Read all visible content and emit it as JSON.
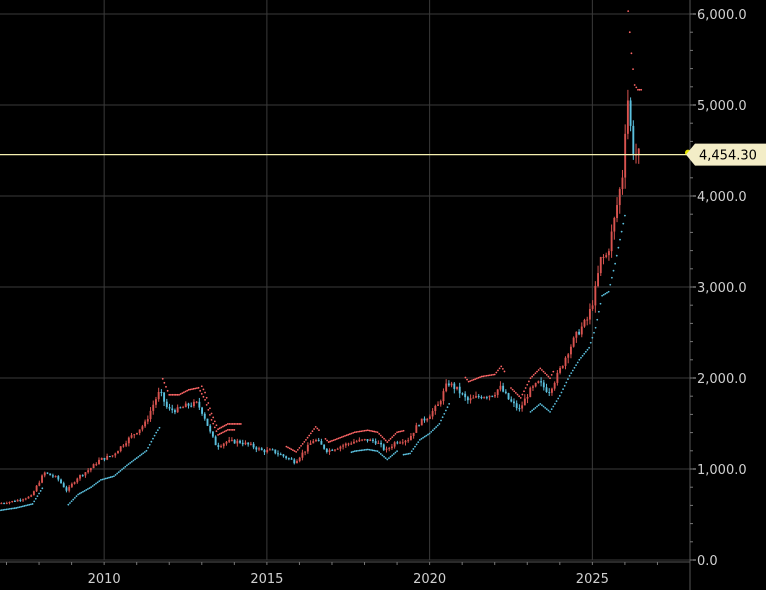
{
  "chart_data": {
    "type": "candlestick",
    "title": "",
    "xlabel": "",
    "ylabel": "",
    "xlim": [
      2006.8,
      2028.0
    ],
    "ylim": [
      0,
      6000
    ],
    "grid": true,
    "x_ticks": [
      {
        "value": 2010,
        "label": "2010"
      },
      {
        "value": 2015,
        "label": "2015"
      },
      {
        "value": 2020,
        "label": "2020"
      },
      {
        "value": 2025,
        "label": "2025"
      }
    ],
    "y_ticks": [
      {
        "value": 0,
        "label": "0.0"
      },
      {
        "value": 1000,
        "label": "1,000.0"
      },
      {
        "value": 2000,
        "label": "2,000.0"
      },
      {
        "value": 3000,
        "label": "3,000.0"
      },
      {
        "value": 4000,
        "label": "4,000.0"
      },
      {
        "value": 5000,
        "label": "5,000.0"
      },
      {
        "value": 6000,
        "label": "6,000.0"
      }
    ],
    "last_price": {
      "value": 4454.3,
      "label": "4,454.30"
    },
    "colors": {
      "up": "#d9534f",
      "down": "#5bc0de",
      "grid": "#3a3a3a",
      "price_line": "#f5f0b0",
      "trail": "#ff6666",
      "trail_up": "#5bc0de",
      "tag_bg": "#f3edc7"
    },
    "price_path": [
      [
        2006.8,
        620
      ],
      [
        2007.3,
        650
      ],
      [
        2007.8,
        700
      ],
      [
        2008.2,
        960
      ],
      [
        2008.6,
        900
      ],
      [
        2008.9,
        760
      ],
      [
        2009.2,
        900
      ],
      [
        2009.6,
        1000
      ],
      [
        2009.9,
        1100
      ],
      [
        2010.3,
        1150
      ],
      [
        2010.7,
        1300
      ],
      [
        2011.0,
        1400
      ],
      [
        2011.3,
        1500
      ],
      [
        2011.6,
        1750
      ],
      [
        2011.75,
        1850
      ],
      [
        2012.0,
        1650
      ],
      [
        2012.3,
        1650
      ],
      [
        2012.6,
        1700
      ],
      [
        2012.9,
        1720
      ],
      [
        2013.1,
        1600
      ],
      [
        2013.3,
        1400
      ],
      [
        2013.5,
        1250
      ],
      [
        2013.8,
        1300
      ],
      [
        2014.2,
        1300
      ],
      [
        2014.6,
        1250
      ],
      [
        2014.9,
        1200
      ],
      [
        2015.2,
        1200
      ],
      [
        2015.5,
        1150
      ],
      [
        2015.9,
        1080
      ],
      [
        2016.2,
        1200
      ],
      [
        2016.5,
        1330
      ],
      [
        2016.9,
        1200
      ],
      [
        2017.3,
        1250
      ],
      [
        2017.7,
        1300
      ],
      [
        2018.1,
        1320
      ],
      [
        2018.4,
        1300
      ],
      [
        2018.7,
        1200
      ],
      [
        2019.0,
        1300
      ],
      [
        2019.4,
        1330
      ],
      [
        2019.7,
        1500
      ],
      [
        2020.0,
        1580
      ],
      [
        2020.3,
        1700
      ],
      [
        2020.6,
        1950
      ],
      [
        2020.9,
        1870
      ],
      [
        2021.2,
        1750
      ],
      [
        2021.6,
        1800
      ],
      [
        2022.0,
        1820
      ],
      [
        2022.2,
        1900
      ],
      [
        2022.5,
        1750
      ],
      [
        2022.8,
        1650
      ],
      [
        2023.1,
        1850
      ],
      [
        2023.4,
        1950
      ],
      [
        2023.7,
        1850
      ],
      [
        2024.0,
        2050
      ],
      [
        2024.3,
        2300
      ],
      [
        2024.6,
        2500
      ],
      [
        2024.9,
        2650
      ],
      [
        2025.1,
        2900
      ],
      [
        2025.3,
        3300
      ],
      [
        2025.5,
        3350
      ],
      [
        2025.7,
        3700
      ],
      [
        2025.85,
        4000
      ],
      [
        2026.0,
        4300
      ],
      [
        2026.1,
        5200
      ],
      [
        2026.2,
        4800
      ],
      [
        2026.3,
        4500
      ],
      [
        2026.4,
        4454.3
      ]
    ]
  }
}
